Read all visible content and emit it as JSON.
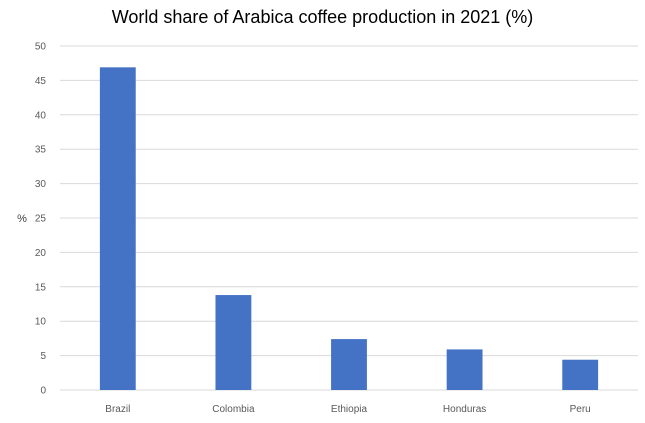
{
  "chart_data": {
    "type": "bar",
    "title": "World share of Arabica coffee production in 2021 (%)",
    "xlabel": "",
    "ylabel": "%",
    "categories": [
      "Brazil",
      "Colombia",
      "Ethiopia",
      "Honduras",
      "Peru"
    ],
    "values": [
      46.9,
      13.8,
      7.4,
      5.9,
      4.4
    ],
    "ylim": [
      0,
      50
    ],
    "yticks": [
      0,
      5,
      10,
      15,
      20,
      25,
      30,
      35,
      40,
      45,
      50
    ],
    "grid": true,
    "legend": "none",
    "bar_color": "#4472c4",
    "grid_color": "#d9d9d9"
  }
}
